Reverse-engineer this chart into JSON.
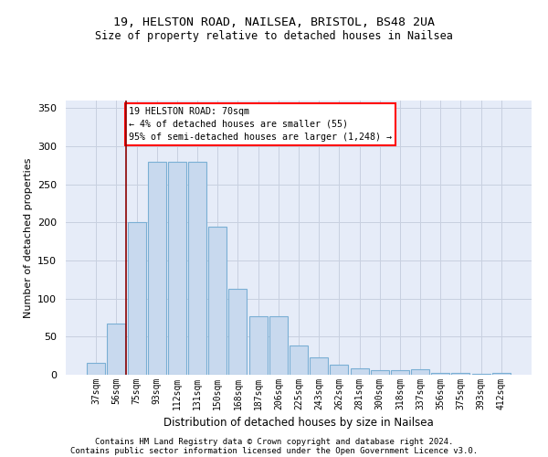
{
  "title1": "19, HELSTON ROAD, NAILSEA, BRISTOL, BS48 2UA",
  "title2": "Size of property relative to detached houses in Nailsea",
  "xlabel": "Distribution of detached houses by size in Nailsea",
  "ylabel": "Number of detached properties",
  "categories": [
    "37sqm",
    "56sqm",
    "75sqm",
    "93sqm",
    "112sqm",
    "131sqm",
    "150sqm",
    "168sqm",
    "187sqm",
    "206sqm",
    "225sqm",
    "243sqm",
    "262sqm",
    "281sqm",
    "300sqm",
    "318sqm",
    "337sqm",
    "356sqm",
    "375sqm",
    "393sqm",
    "412sqm"
  ],
  "values": [
    16,
    67,
    200,
    280,
    280,
    280,
    195,
    113,
    77,
    77,
    38,
    23,
    13,
    9,
    6,
    6,
    7,
    3,
    2,
    1,
    3
  ],
  "bar_color": "#c8d9ee",
  "bar_edge_color": "#7aafd4",
  "grid_color": "#c8d0e0",
  "background_color": "#e6ecf8",
  "annotation_text_line1": "19 HELSTON ROAD: 70sqm",
  "annotation_text_line2": "← 4% of detached houses are smaller (55)",
  "annotation_text_line3": "95% of semi-detached houses are larger (1,248) →",
  "red_line_x": 1.5,
  "ylim": [
    0,
    360
  ],
  "yticks": [
    0,
    50,
    100,
    150,
    200,
    250,
    300,
    350
  ],
  "footer1": "Contains HM Land Registry data © Crown copyright and database right 2024.",
  "footer2": "Contains public sector information licensed under the Open Government Licence v3.0."
}
